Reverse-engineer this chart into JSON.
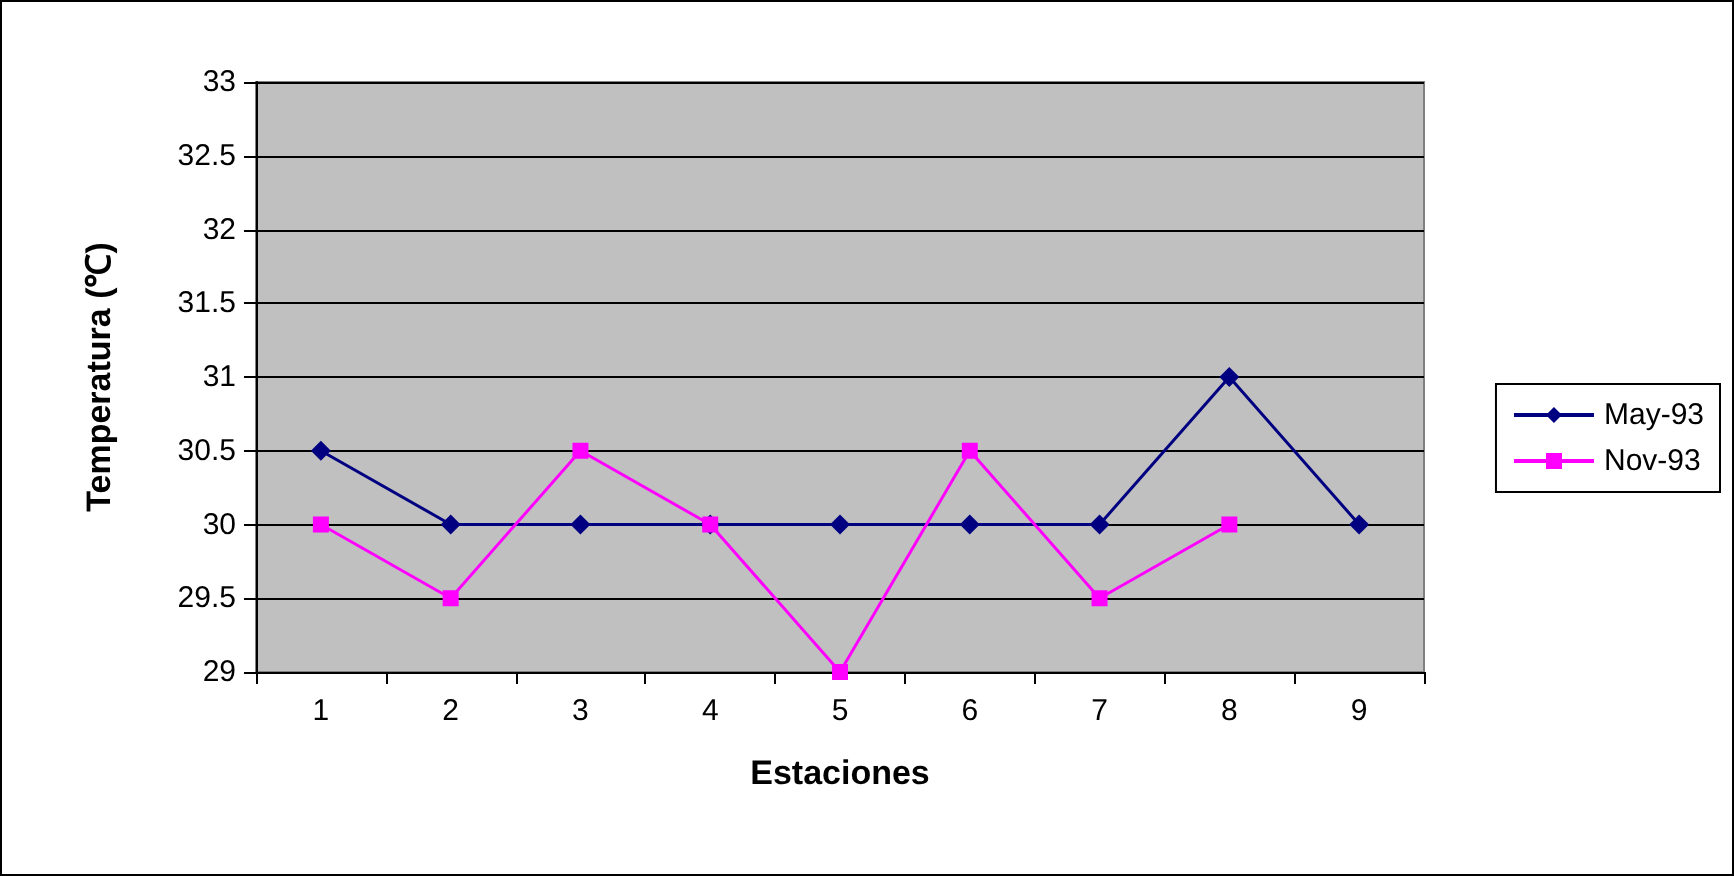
{
  "chart_data": {
    "type": "line",
    "xlabel": "Estaciones",
    "ylabel": "Temperatura (℃)",
    "categories": [
      "1",
      "2",
      "3",
      "4",
      "5",
      "6",
      "7",
      "8",
      "9"
    ],
    "series": [
      {
        "name": "May-93",
        "color": "#000080",
        "marker": "diamond",
        "values": [
          30.5,
          30,
          30,
          30,
          30,
          30,
          30,
          31,
          30
        ]
      },
      {
        "name": "Nov-93",
        "color": "#ff00ff",
        "marker": "square",
        "values": [
          30,
          29.5,
          30.5,
          30,
          29,
          30.5,
          29.5,
          30,
          null
        ]
      }
    ],
    "ylim": [
      29,
      33
    ],
    "yticks": [
      29,
      29.5,
      30,
      30.5,
      31,
      31.5,
      32,
      32.5,
      33
    ],
    "grid": "y",
    "legend": "right"
  }
}
